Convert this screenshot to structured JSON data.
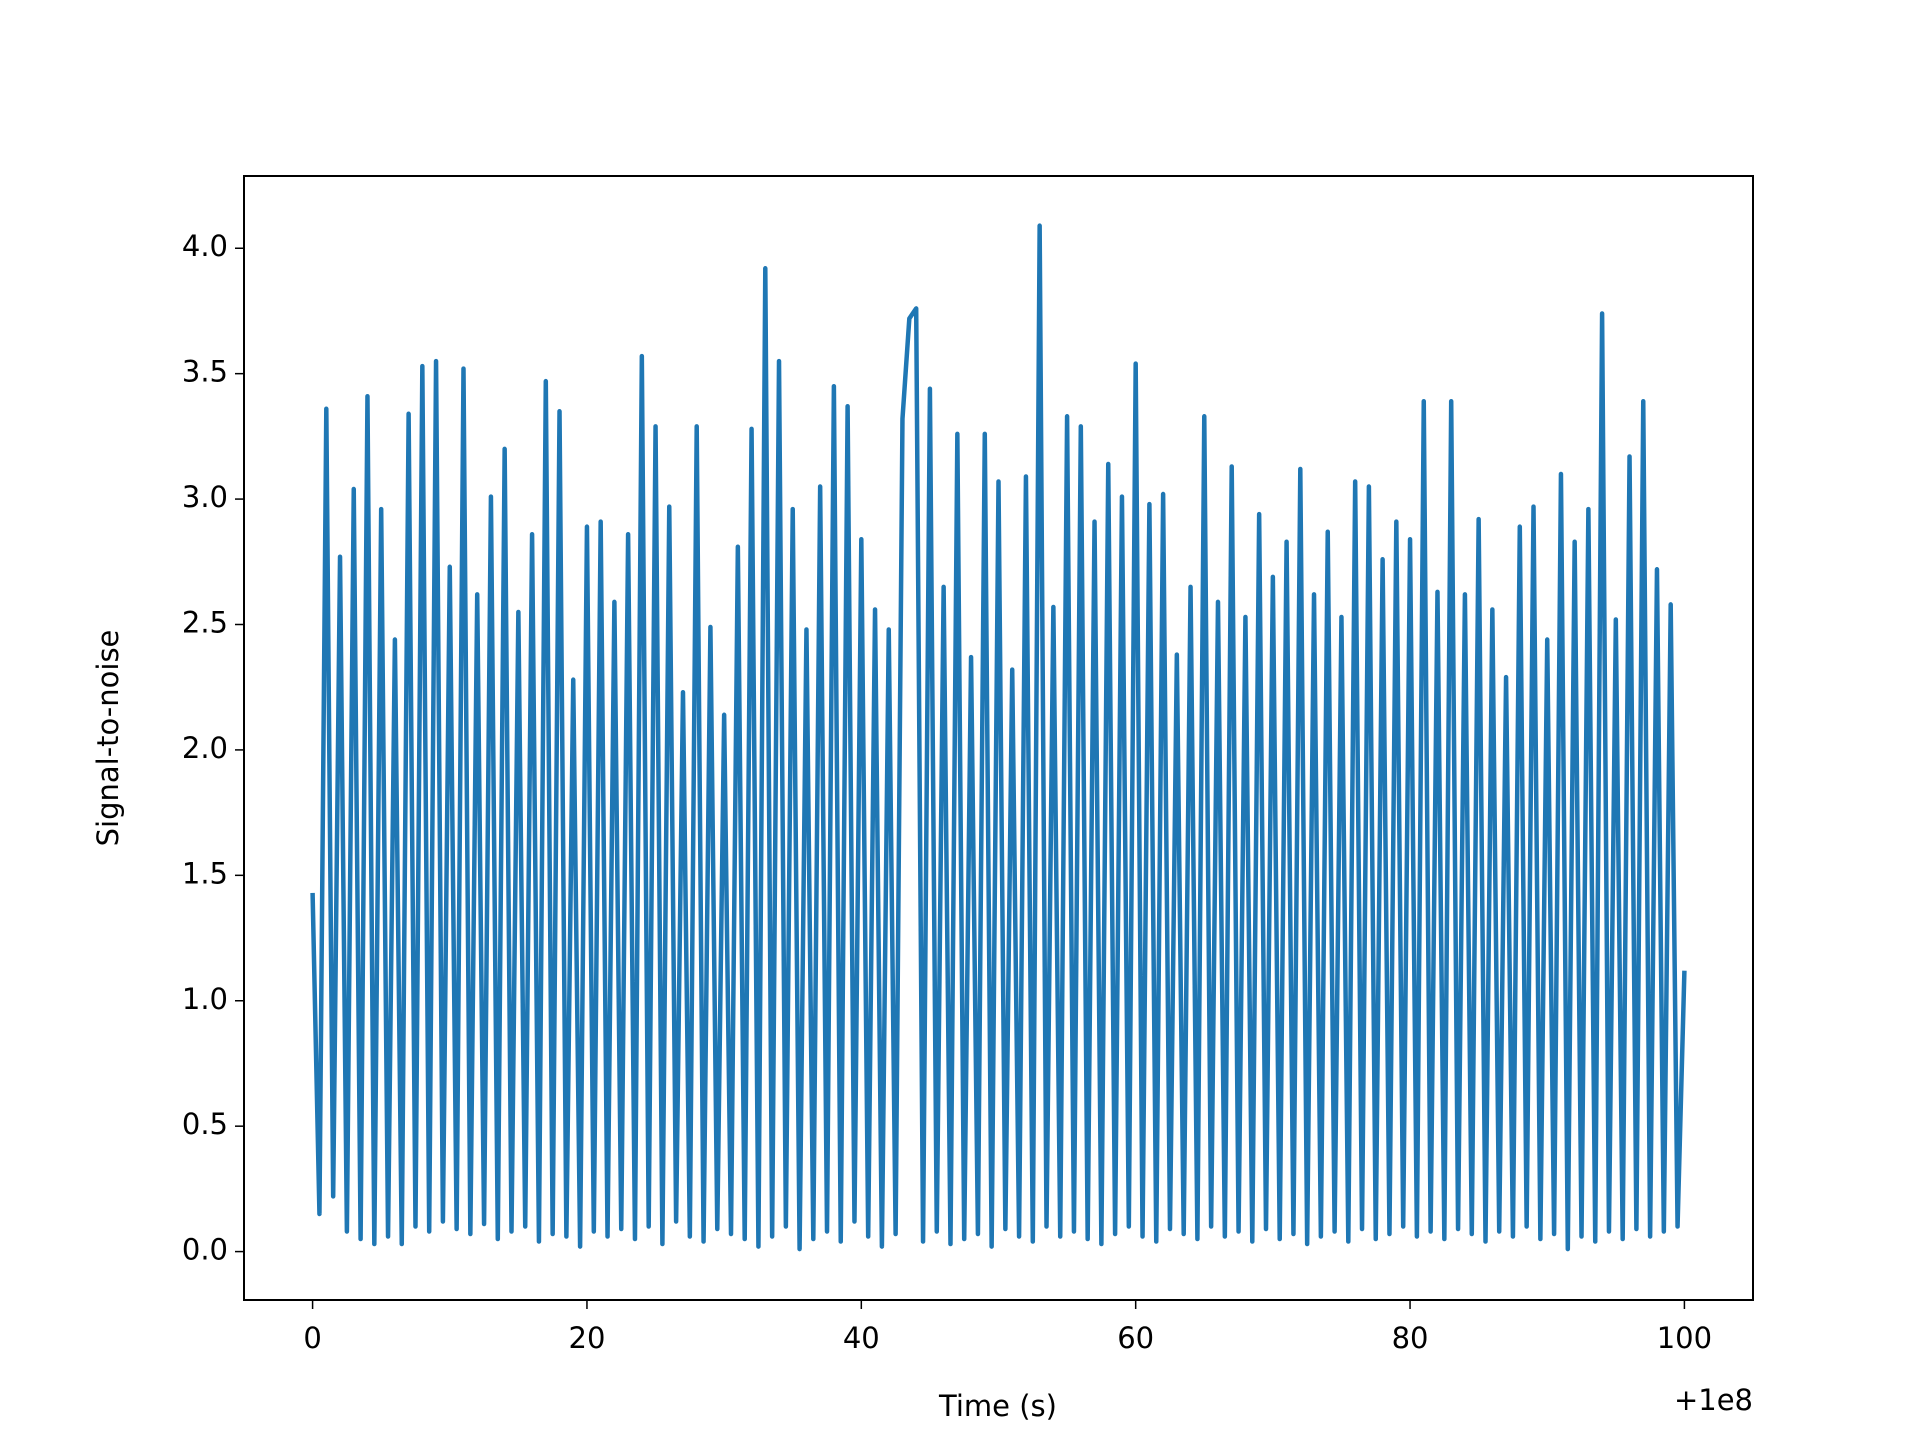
{
  "chart_data": {
    "type": "line",
    "x_label": "Time (s)",
    "y_label": "Signal-to-noise",
    "x_offset_text": "+1e8",
    "color": "#1f77b4",
    "xlim": [
      -5,
      105
    ],
    "xticks": [
      0,
      20,
      40,
      60,
      80,
      100
    ],
    "ylim": [
      -0.193,
      4.288
    ],
    "yticks": [
      {
        "value": 0,
        "label": "0.0"
      },
      0.5,
      {
        "value": 1,
        "label": "1.0"
      },
      1.5,
      {
        "value": 2,
        "label": "2.0"
      },
      2.5,
      {
        "value": 3,
        "label": "3.0"
      },
      3.5,
      {
        "value": 4,
        "label": "4.0"
      }
    ],
    "x": [
      0,
      0.5,
      1,
      1.5,
      2,
      2.5,
      3,
      3.5,
      4,
      4.5,
      5,
      5.5,
      6,
      6.5,
      7,
      7.5,
      8,
      8.5,
      9,
      9.5,
      10,
      10.5,
      11,
      11.5,
      12,
      12.5,
      13,
      13.5,
      14,
      14.5,
      15,
      15.5,
      16,
      16.5,
      17,
      17.5,
      18,
      18.5,
      19,
      19.5,
      20,
      20.5,
      21,
      21.5,
      22,
      22.5,
      23,
      23.5,
      24,
      24.5,
      25,
      25.5,
      26,
      26.5,
      27,
      27.5,
      28,
      28.5,
      29,
      29.5,
      30,
      30.5,
      31,
      31.5,
      32,
      32.5,
      33,
      33.5,
      34,
      34.5,
      35,
      35.5,
      36,
      36.5,
      37,
      37.5,
      38,
      38.5,
      39,
      39.5,
      40,
      40.5,
      41,
      41.5,
      42,
      42.5,
      43,
      43.5,
      44,
      44.5,
      45,
      45.5,
      46,
      46.5,
      47,
      47.5,
      48,
      48.5,
      49,
      49.5,
      50,
      50.5,
      51,
      51.5,
      52,
      52.5,
      53,
      53.5,
      54,
      54.5,
      55,
      55.5,
      56,
      56.5,
      57,
      57.5,
      58,
      58.5,
      59,
      59.5,
      60,
      60.5,
      61,
      61.5,
      62,
      62.5,
      63,
      63.5,
      64,
      64.5,
      65,
      65.5,
      66,
      66.5,
      67,
      67.5,
      68,
      68.5,
      69,
      69.5,
      70,
      70.5,
      71,
      71.5,
      72,
      72.5,
      73,
      73.5,
      74,
      74.5,
      75,
      75.5,
      76,
      76.5,
      77,
      77.5,
      78,
      78.5,
      79,
      79.5,
      80,
      80.5,
      81,
      81.5,
      82,
      82.5,
      83,
      83.5,
      84,
      84.5,
      85,
      85.5,
      86,
      86.5,
      87,
      87.5,
      88,
      88.5,
      89,
      89.5,
      90,
      90.5,
      91,
      91.5,
      92,
      92.5,
      93,
      93.5,
      94,
      94.5,
      95,
      95.5,
      96,
      96.5,
      97,
      97.5,
      98,
      98.5,
      99,
      99.5,
      100
    ],
    "values": [
      1.43,
      0.15,
      3.36,
      0.22,
      2.77,
      0.08,
      3.04,
      0.05,
      3.41,
      0.03,
      2.96,
      0.06,
      2.44,
      0.03,
      3.34,
      0.1,
      3.53,
      0.08,
      3.55,
      0.12,
      2.73,
      0.09,
      3.52,
      0.07,
      2.62,
      0.11,
      3.01,
      0.05,
      3.2,
      0.08,
      2.55,
      0.1,
      2.86,
      0.04,
      3.47,
      0.07,
      3.35,
      0.06,
      2.28,
      0.02,
      2.89,
      0.08,
      2.91,
      0.06,
      2.59,
      0.09,
      2.86,
      0.05,
      3.57,
      0.1,
      3.29,
      0.03,
      2.97,
      0.12,
      2.23,
      0.06,
      3.29,
      0.04,
      2.49,
      0.09,
      2.14,
      0.07,
      2.81,
      0.05,
      3.28,
      0.02,
      3.92,
      0.06,
      3.55,
      0.1,
      2.96,
      0.01,
      2.48,
      0.05,
      3.05,
      0.08,
      3.45,
      0.04,
      3.37,
      0.12,
      2.84,
      0.06,
      2.56,
      0.02,
      2.48,
      0.07,
      3.32,
      3.72,
      3.76,
      0.04,
      3.44,
      0.08,
      2.65,
      0.03,
      3.26,
      0.05,
      2.37,
      0.07,
      3.26,
      0.02,
      3.07,
      0.09,
      2.32,
      0.06,
      3.09,
      0.04,
      4.09,
      0.1,
      2.57,
      0.06,
      3.33,
      0.08,
      3.29,
      0.05,
      2.91,
      0.03,
      3.14,
      0.07,
      3.01,
      0.1,
      3.54,
      0.06,
      2.98,
      0.04,
      3.02,
      0.09,
      2.38,
      0.07,
      2.65,
      0.05,
      3.33,
      0.1,
      2.59,
      0.06,
      3.13,
      0.08,
      2.53,
      0.04,
      2.94,
      0.09,
      2.69,
      0.05,
      2.83,
      0.07,
      3.12,
      0.03,
      2.62,
      0.06,
      2.87,
      0.08,
      2.53,
      0.04,
      3.07,
      0.09,
      3.05,
      0.05,
      2.76,
      0.07,
      2.91,
      0.1,
      2.84,
      0.06,
      3.39,
      0.08,
      2.63,
      0.05,
      3.39,
      0.09,
      2.62,
      0.07,
      2.92,
      0.04,
      2.56,
      0.08,
      2.29,
      0.06,
      2.89,
      0.1,
      2.97,
      0.05,
      2.44,
      0.07,
      3.1,
      0.01,
      2.83,
      0.06,
      2.96,
      0.04,
      3.74,
      0.08,
      2.52,
      0.05,
      3.17,
      0.09,
      3.39,
      0.06,
      2.72,
      0.08,
      2.58,
      0.1,
      1.12
    ]
  }
}
